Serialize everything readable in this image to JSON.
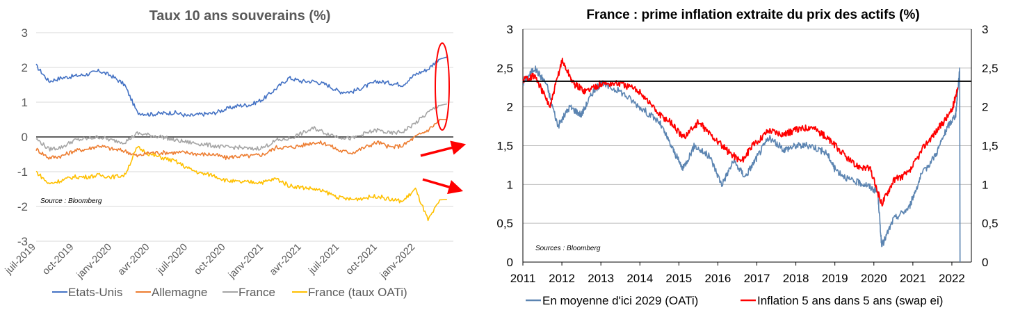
{
  "chart_data": [
    {
      "type": "line",
      "title": "Taux 10 ans souverains (%)",
      "source": "Source : Bloomberg",
      "ylim": [
        -3,
        3
      ],
      "y_ticks": [
        "3",
        "2",
        "1",
        "0",
        "-1",
        "-2",
        "-3"
      ],
      "x_ticks": [
        "juil-2019",
        "oct-2019",
        "janv-2020",
        "avr-2020",
        "juil-2020",
        "oct-2020",
        "janv-2021",
        "avr-2021",
        "juil-2021",
        "oct-2021",
        "janv-2022"
      ],
      "x_range": [
        "2019-07-01",
        "2022-04-01"
      ],
      "grid": true,
      "legend": "bottom",
      "reference_line": 0,
      "highlight_ellipse": {
        "x": "2022-03",
        "y_range": [
          0.2,
          2.7
        ]
      },
      "arrows": [
        {
          "from": [
            "2022-01",
            -0.45
          ],
          "to": [
            "2022-04",
            -0.2
          ]
        },
        {
          "from": [
            "2022-01",
            -1.25
          ],
          "to": [
            "2022-04",
            -1.5
          ]
        }
      ],
      "series": [
        {
          "name": "Etats-Unis",
          "color": "#4472C4",
          "points": [
            [
              "2019-07",
              2.05
            ],
            [
              "2019-08",
              1.6
            ],
            [
              "2019-09",
              1.7
            ],
            [
              "2019-10",
              1.75
            ],
            [
              "2019-11",
              1.8
            ],
            [
              "2019-12",
              1.9
            ],
            [
              "2020-01",
              1.75
            ],
            [
              "2020-02",
              1.5
            ],
            [
              "2020-03",
              0.7
            ],
            [
              "2020-04",
              0.65
            ],
            [
              "2020-05",
              0.68
            ],
            [
              "2020-06",
              0.7
            ],
            [
              "2020-07",
              0.6
            ],
            [
              "2020-08",
              0.65
            ],
            [
              "2020-09",
              0.68
            ],
            [
              "2020-10",
              0.8
            ],
            [
              "2020-11",
              0.9
            ],
            [
              "2020-12",
              0.93
            ],
            [
              "2021-01",
              1.1
            ],
            [
              "2021-02",
              1.4
            ],
            [
              "2021-03",
              1.7
            ],
            [
              "2021-04",
              1.6
            ],
            [
              "2021-05",
              1.6
            ],
            [
              "2021-06",
              1.5
            ],
            [
              "2021-07",
              1.3
            ],
            [
              "2021-08",
              1.3
            ],
            [
              "2021-09",
              1.45
            ],
            [
              "2021-10",
              1.6
            ],
            [
              "2021-11",
              1.55
            ],
            [
              "2021-12",
              1.5
            ],
            [
              "2022-01",
              1.8
            ],
            [
              "2022-02",
              1.95
            ],
            [
              "2022-03",
              2.3
            ]
          ]
        },
        {
          "name": "Allemagne",
          "color": "#ED7D31",
          "points": [
            [
              "2019-07",
              -0.35
            ],
            [
              "2019-08",
              -0.6
            ],
            [
              "2019-09",
              -0.55
            ],
            [
              "2019-10",
              -0.4
            ],
            [
              "2019-11",
              -0.35
            ],
            [
              "2019-12",
              -0.25
            ],
            [
              "2020-01",
              -0.35
            ],
            [
              "2020-02",
              -0.4
            ],
            [
              "2020-03",
              -0.55
            ],
            [
              "2020-04",
              -0.45
            ],
            [
              "2020-05",
              -0.45
            ],
            [
              "2020-06",
              -0.45
            ],
            [
              "2020-07",
              -0.45
            ],
            [
              "2020-08",
              -0.5
            ],
            [
              "2020-09",
              -0.5
            ],
            [
              "2020-10",
              -0.6
            ],
            [
              "2020-11",
              -0.55
            ],
            [
              "2020-12",
              -0.55
            ],
            [
              "2021-01",
              -0.5
            ],
            [
              "2021-02",
              -0.3
            ],
            [
              "2021-03",
              -0.3
            ],
            [
              "2021-04",
              -0.25
            ],
            [
              "2021-05",
              -0.15
            ],
            [
              "2021-06",
              -0.2
            ],
            [
              "2021-07",
              -0.4
            ],
            [
              "2021-08",
              -0.45
            ],
            [
              "2021-09",
              -0.3
            ],
            [
              "2021-10",
              -0.15
            ],
            [
              "2021-11",
              -0.3
            ],
            [
              "2021-12",
              -0.25
            ],
            [
              "2022-01",
              0.0
            ],
            [
              "2022-02",
              0.2
            ],
            [
              "2022-03",
              0.5
            ]
          ]
        },
        {
          "name": "France",
          "color": "#A5A5A5",
          "points": [
            [
              "2019-07",
              -0.05
            ],
            [
              "2019-08",
              -0.35
            ],
            [
              "2019-09",
              -0.3
            ],
            [
              "2019-10",
              -0.1
            ],
            [
              "2019-11",
              -0.05
            ],
            [
              "2019-12",
              0.0
            ],
            [
              "2020-01",
              -0.1
            ],
            [
              "2020-02",
              -0.15
            ],
            [
              "2020-03",
              0.1
            ],
            [
              "2020-04",
              0.05
            ],
            [
              "2020-05",
              0.0
            ],
            [
              "2020-06",
              -0.1
            ],
            [
              "2020-07",
              -0.15
            ],
            [
              "2020-08",
              -0.2
            ],
            [
              "2020-09",
              -0.25
            ],
            [
              "2020-10",
              -0.3
            ],
            [
              "2020-11",
              -0.3
            ],
            [
              "2020-12",
              -0.35
            ],
            [
              "2021-01",
              -0.3
            ],
            [
              "2021-02",
              -0.1
            ],
            [
              "2021-03",
              -0.05
            ],
            [
              "2021-04",
              0.1
            ],
            [
              "2021-05",
              0.25
            ],
            [
              "2021-06",
              0.1
            ],
            [
              "2021-07",
              0.0
            ],
            [
              "2021-08",
              -0.05
            ],
            [
              "2021-09",
              0.1
            ],
            [
              "2021-10",
              0.2
            ],
            [
              "2021-11",
              0.1
            ],
            [
              "2021-12",
              0.15
            ],
            [
              "2022-01",
              0.4
            ],
            [
              "2022-02",
              0.7
            ],
            [
              "2022-03",
              0.95
            ]
          ]
        },
        {
          "name": "France (taux OATi)",
          "color": "#FFC000",
          "points": [
            [
              "2019-07",
              -1.0
            ],
            [
              "2019-08",
              -1.35
            ],
            [
              "2019-09",
              -1.25
            ],
            [
              "2019-10",
              -1.15
            ],
            [
              "2019-11",
              -1.15
            ],
            [
              "2019-12",
              -1.1
            ],
            [
              "2020-01",
              -1.15
            ],
            [
              "2020-02",
              -1.1
            ],
            [
              "2020-03",
              -0.3
            ],
            [
              "2020-04",
              -0.5
            ],
            [
              "2020-05",
              -0.6
            ],
            [
              "2020-06",
              -0.7
            ],
            [
              "2020-07",
              -0.9
            ],
            [
              "2020-08",
              -1.05
            ],
            [
              "2020-09",
              -1.1
            ],
            [
              "2020-10",
              -1.25
            ],
            [
              "2020-11",
              -1.3
            ],
            [
              "2020-12",
              -1.3
            ],
            [
              "2021-01",
              -1.3
            ],
            [
              "2021-02",
              -1.2
            ],
            [
              "2021-03",
              -1.4
            ],
            [
              "2021-04",
              -1.45
            ],
            [
              "2021-05",
              -1.5
            ],
            [
              "2021-06",
              -1.6
            ],
            [
              "2021-07",
              -1.75
            ],
            [
              "2021-08",
              -1.8
            ],
            [
              "2021-09",
              -1.75
            ],
            [
              "2021-10",
              -1.7
            ],
            [
              "2021-11",
              -1.8
            ],
            [
              "2021-12",
              -1.85
            ],
            [
              "2022-01",
              -1.5
            ],
            [
              "2022-02",
              -2.4
            ],
            [
              "2022-03",
              -1.8
            ]
          ]
        }
      ]
    },
    {
      "type": "line",
      "title": "France : prime inflation extraite du prix des actifs (%)",
      "source": "Sources : Bloomberg",
      "ylim": [
        0,
        3
      ],
      "y_ticks": [
        "3",
        "2,5",
        "2",
        "1,5",
        "1",
        "0,5",
        "0"
      ],
      "x_ticks": [
        "2011",
        "2012",
        "2013",
        "2014",
        "2015",
        "2016",
        "2017",
        "2018",
        "2019",
        "2020",
        "2021",
        "2022"
      ],
      "x_range": [
        2011,
        2022.5
      ],
      "grid": true,
      "legend": "bottom",
      "reference_line": 2.33,
      "series": [
        {
          "name": "En moyenne d'ici 2029 (OATi)",
          "color": "#5B84B1",
          "points": [
            [
              2011,
              2.3
            ],
            [
              2011.3,
              2.5
            ],
            [
              2011.6,
              2.3
            ],
            [
              2011.9,
              1.75
            ],
            [
              2012.2,
              2.0
            ],
            [
              2012.5,
              1.9
            ],
            [
              2012.8,
              2.2
            ],
            [
              2013.0,
              2.3
            ],
            [
              2013.5,
              2.2
            ],
            [
              2014.0,
              2.0
            ],
            [
              2014.5,
              1.8
            ],
            [
              2014.8,
              1.5
            ],
            [
              2015.1,
              1.2
            ],
            [
              2015.4,
              1.5
            ],
            [
              2015.8,
              1.35
            ],
            [
              2016.1,
              1.0
            ],
            [
              2016.4,
              1.3
            ],
            [
              2016.7,
              1.1
            ],
            [
              2017.0,
              1.35
            ],
            [
              2017.3,
              1.6
            ],
            [
              2017.7,
              1.45
            ],
            [
              2018.0,
              1.5
            ],
            [
              2018.4,
              1.5
            ],
            [
              2018.8,
              1.4
            ],
            [
              2019.0,
              1.2
            ],
            [
              2019.4,
              1.05
            ],
            [
              2019.8,
              1.0
            ],
            [
              2020.1,
              0.9
            ],
            [
              2020.2,
              0.2
            ],
            [
              2020.5,
              0.55
            ],
            [
              2020.9,
              0.7
            ],
            [
              2021.2,
              1.1
            ],
            [
              2021.6,
              1.4
            ],
            [
              2021.9,
              1.75
            ],
            [
              2022.1,
              1.9
            ],
            [
              2022.2,
              2.5
            ]
          ]
        },
        {
          "name": "Inflation 5 ans dans 5 ans (swap ei)",
          "color": "#FF0000",
          "points": [
            [
              2011,
              2.35
            ],
            [
              2011.3,
              2.4
            ],
            [
              2011.7,
              2.0
            ],
            [
              2012.0,
              2.6
            ],
            [
              2012.3,
              2.3
            ],
            [
              2012.6,
              2.2
            ],
            [
              2013.0,
              2.3
            ],
            [
              2013.5,
              2.3
            ],
            [
              2014.0,
              2.2
            ],
            [
              2014.5,
              1.9
            ],
            [
              2014.8,
              1.8
            ],
            [
              2015.1,
              1.6
            ],
            [
              2015.5,
              1.8
            ],
            [
              2015.8,
              1.65
            ],
            [
              2016.2,
              1.45
            ],
            [
              2016.6,
              1.3
            ],
            [
              2016.9,
              1.5
            ],
            [
              2017.3,
              1.7
            ],
            [
              2017.7,
              1.65
            ],
            [
              2018.0,
              1.7
            ],
            [
              2018.4,
              1.75
            ],
            [
              2018.8,
              1.6
            ],
            [
              2019.1,
              1.45
            ],
            [
              2019.5,
              1.25
            ],
            [
              2019.9,
              1.2
            ],
            [
              2020.2,
              0.75
            ],
            [
              2020.5,
              1.05
            ],
            [
              2020.9,
              1.15
            ],
            [
              2021.3,
              1.5
            ],
            [
              2021.7,
              1.75
            ],
            [
              2022.0,
              1.95
            ],
            [
              2022.15,
              2.25
            ]
          ]
        }
      ]
    }
  ]
}
